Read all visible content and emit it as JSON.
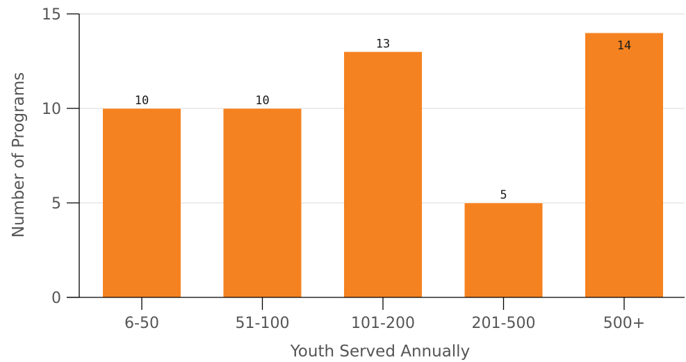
{
  "chart_data": {
    "type": "bar",
    "categories": [
      "6-50",
      "51-100",
      "101-200",
      "201-500",
      "500+"
    ],
    "values": [
      10,
      10,
      13,
      5,
      14
    ],
    "data_labels": [
      "10",
      "10",
      "13",
      "5",
      "14"
    ],
    "title": "",
    "xlabel": "Youth Served Annually",
    "ylabel": "Number of Programs",
    "ylim": [
      0,
      15
    ],
    "yticks": [
      0,
      5,
      10,
      15
    ],
    "grid": true,
    "bar_color": "#F58220"
  }
}
